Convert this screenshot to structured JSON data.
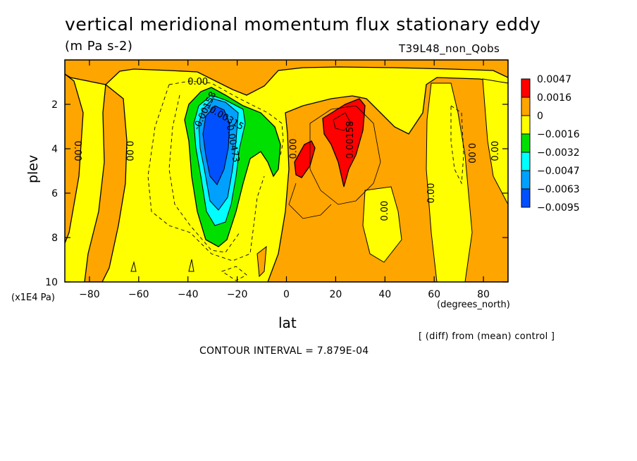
{
  "header": {
    "title": "vertical meridional momentum flux stationary eddy",
    "units": "(m Pa s-2)",
    "run_id": "T39L48_non_Qobs"
  },
  "footer": {
    "comparison_note": "[ (diff) from (mean) control ]",
    "contour_interval": "CONTOUR INTERVAL = 7.879E-04"
  },
  "colors": {
    "red": "#ff0000",
    "orange": "#ffa500",
    "yellow": "#ffff00",
    "green": "#00e000",
    "cyan": "#00ffff",
    "light_blue": "#00a0ff",
    "blue": "#0050ff"
  },
  "chart_data": {
    "type": "heatmap",
    "xlabel": "lat",
    "ylabel": "plev",
    "x_unit": "(degrees_north)",
    "y_unit": "(x1E4 Pa)",
    "xlim": [
      -90,
      90
    ],
    "ylim": [
      10,
      0
    ],
    "x_ticks": [
      -80,
      -60,
      -40,
      -20,
      0,
      20,
      40,
      60,
      80
    ],
    "y_ticks": [
      2,
      4,
      6,
      8,
      10
    ],
    "legend": {
      "position": "right",
      "levels": [
        "0.0047",
        "0.0016",
        "0",
        "−0.0016",
        "−0.0032",
        "−0.0047",
        "−0.0063",
        "−0.0095"
      ],
      "colors": [
        "#ff0000",
        "#ffa500",
        "#ffff00",
        "#00e000",
        "#00ffff",
        "#00a0ff",
        "#0050ff"
      ]
    },
    "contour_labels": [
      {
        "text": "0.00",
        "lat": -36,
        "plev": 1.0,
        "rotate": 0
      },
      {
        "text": "-0.00158",
        "lat": -33,
        "plev": 2.3,
        "rotate": -65
      },
      {
        "text": "-0.00315",
        "lat": -25,
        "plev": 2.6,
        "rotate": 30
      },
      {
        "text": "-0.00473",
        "lat": -22,
        "plev": 3.7,
        "rotate": 80
      },
      {
        "text": "0.00",
        "lat": -85,
        "plev": 4.1,
        "rotate": 90
      },
      {
        "text": "0.00",
        "lat": -64,
        "plev": 4.1,
        "rotate": 90
      },
      {
        "text": "0.00",
        "lat": 3,
        "plev": 4.0,
        "rotate": -90
      },
      {
        "text": "0.00158",
        "lat": 26,
        "plev": 3.6,
        "rotate": -90
      },
      {
        "text": "0.00",
        "lat": 40,
        "plev": 6.8,
        "rotate": -90
      },
      {
        "text": "0.00",
        "lat": 59,
        "plev": 6.0,
        "rotate": -90
      },
      {
        "text": "0.00",
        "lat": 75,
        "plev": 4.2,
        "rotate": 90
      },
      {
        "text": "0.00",
        "lat": 85,
        "plev": 4.1,
        "rotate": -90
      }
    ],
    "regions": [
      {
        "level": "orange",
        "lat": 0,
        "lat_end": 90,
        "plev": 3,
        "plev_end": 10
      },
      {
        "level": "orange",
        "lat": -90,
        "lat_end": 90,
        "plev": 0,
        "plev_end": 1.5
      },
      {
        "level": "red",
        "lat": 25,
        "plev": 2.8
      },
      {
        "level": "red",
        "lat": 7,
        "plev": 4.6
      },
      {
        "level": "green",
        "lat": -22,
        "plev": 4.5
      },
      {
        "level": "blue",
        "lat": -28,
        "plev": 4.3
      }
    ]
  }
}
